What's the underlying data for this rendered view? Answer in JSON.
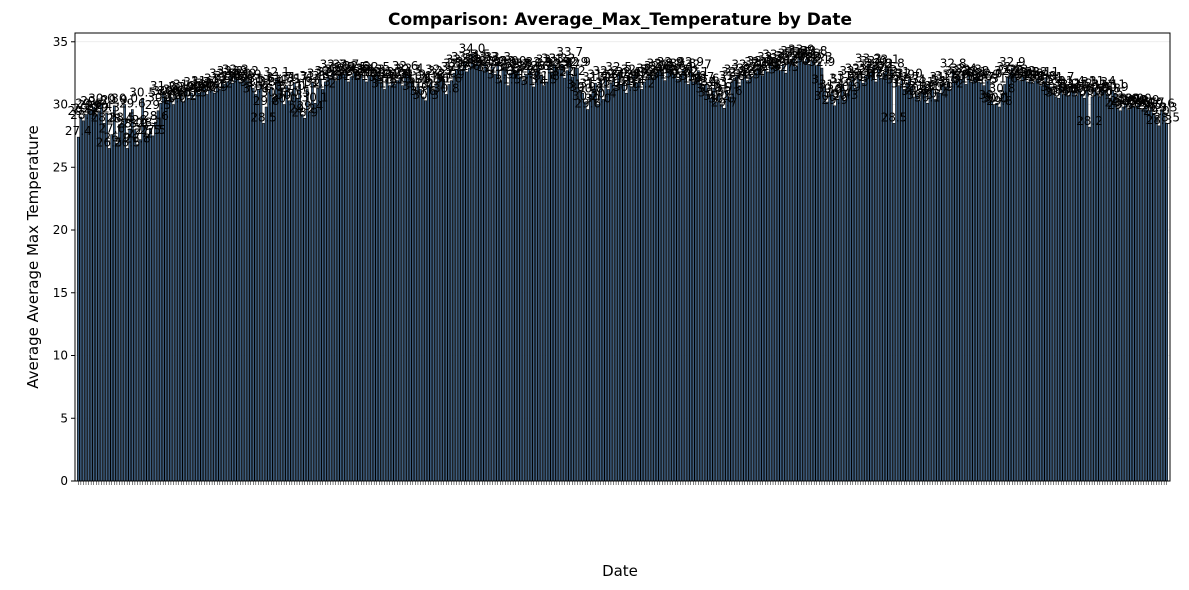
{
  "chart_data": {
    "type": "bar",
    "title": "Comparison: Average_Max_Temperature by Date",
    "xlabel": "Date",
    "ylabel": "Average Average Max Temperature",
    "ylim": [
      0,
      35.7
    ],
    "yticks": [
      0,
      5,
      10,
      15,
      20,
      25,
      30,
      35
    ],
    "grid": true,
    "bar_color": "#3f5f80",
    "bar_edge": "#000000",
    "values": [
      27.4,
      29.0,
      28.7,
      29.2,
      29.6,
      29.5,
      29.8,
      29.2,
      29.4,
      30.0,
      28.5,
      29.3,
      26.5,
      27.6,
      29.9,
      26.9,
      28.4,
      28.5,
      30.0,
      26.5,
      28.0,
      29.6,
      28.0,
      26.8,
      27.2,
      30.5,
      28.3,
      27.5,
      28.1,
      27.5,
      28.6,
      29.5,
      30.1,
      31.0,
      30.6,
      30.3,
      30.6,
      30.0,
      30.7,
      30.5,
      30.9,
      30.2,
      31.1,
      30.5,
      30.9,
      30.5,
      31.3,
      30.9,
      31.0,
      31.4,
      30.8,
      31.2,
      31.1,
      30.9,
      31.6,
      31.2,
      32.0,
      31.6,
      31.8,
      32.2,
      31.7,
      32.3,
      32.0,
      31.8,
      32.0,
      32.2,
      31.9,
      31.5,
      31.3,
      30.8,
      31.2,
      31.6,
      28.5,
      29.8,
      31.0,
      31.4,
      30.5,
      32.1,
      31.7,
      31.3,
      30.0,
      31.5,
      30.3,
      31.0,
      31.7,
      30.5,
      31.6,
      29.2,
      28.9,
      31.2,
      29.4,
      31.8,
      30.1,
      31.3,
      32.0,
      31.2,
      31.8,
      32.2,
      32.1,
      32.7,
      31.9,
      32.3,
      32.5,
      32.4,
      32.7,
      31.8,
      32.2,
      32.5,
      32.6,
      32.1,
      32.4,
      32.0,
      31.8,
      32.3,
      32.3,
      32.1,
      32.5,
      32.1,
      31.7,
      31.2,
      32.0,
      31.5,
      31.9,
      31.6,
      31.9,
      32.1,
      31.5,
      32.6,
      32.3,
      32.4,
      31.9,
      31.0,
      31.6,
      31.2,
      30.6,
      30.3,
      31.5,
      31.8,
      31.1,
      31.6,
      32.3,
      32.2,
      32.0,
      30.8,
      31.6,
      31.9,
      32.5,
      32.8,
      33.1,
      32.8,
      33.3,
      32.6,
      32.9,
      34.0,
      33.2,
      33.5,
      33.1,
      32.7,
      33.3,
      32.9,
      32.5,
      33.0,
      32.4,
      33.3,
      31.9,
      32.9,
      33.0,
      31.5,
      32.5,
      33.0,
      32.7,
      32.8,
      32.2,
      31.9,
      32.4,
      32.8,
      32.6,
      31.4,
      32.6,
      32.9,
      32.3,
      31.5,
      31.8,
      33.1,
      32.6,
      33.2,
      32.9,
      32.8,
      33.2,
      32.1,
      32.7,
      33.7,
      32.2,
      32.9,
      32.9,
      31.1,
      30.9,
      30.2,
      29.6,
      30.8,
      31.2,
      31.7,
      30.0,
      31.9,
      30.4,
      32.2,
      31.2,
      31.7,
      32.0,
      31.3,
      32.5,
      31.6,
      31.9,
      30.9,
      32.1,
      31.4,
      32.3,
      31.7,
      31.9,
      31.2,
      31.8,
      32.0,
      32.4,
      32.1,
      32.3,
      32.6,
      32.8,
      32.5,
      31.9,
      32.7,
      32.9,
      32.6,
      32.3,
      32.0,
      32.4,
      32.8,
      32.2,
      31.6,
      32.9,
      31.8,
      32.1,
      32.7,
      31.7,
      31.4,
      31.6,
      30.8,
      30.5,
      31.3,
      30.2,
      30.9,
      30.0,
      29.7,
      31.1,
      30.6,
      31.8,
      32.1,
      32.3,
      31.5,
      32.0,
      32.7,
      31.9,
      32.4,
      32.2,
      32.5,
      32.9,
      33.0,
      32.3,
      32.8,
      32.6,
      33.3,
      32.9,
      33.5,
      33.1,
      32.7,
      33.2,
      32.5,
      33.4,
      33.6,
      33.8,
      33.0,
      33.7,
      33.9,
      33.4,
      33.6,
      33.2,
      33.5,
      33.8,
      33.1,
      33.3,
      32.9,
      31.5,
      30.2,
      30.8,
      31.1,
      29.9,
      30.4,
      30.7,
      31.6,
      30.3,
      30.9,
      31.8,
      32.2,
      31.3,
      32.4,
      32.0,
      31.7,
      32.3,
      33.2,
      32.6,
      33.0,
      31.8,
      32.8,
      32.1,
      32.5,
      33.1,
      32.0,
      32.8,
      28.5,
      32.1,
      31.5,
      31.9,
      31.2,
      31.7,
      32.0,
      31.4,
      30.6,
      30.8,
      30.3,
      31.0,
      31.5,
      30.1,
      30.7,
      31.3,
      30.4,
      31.0,
      30.9,
      31.7,
      31.4,
      31.8,
      31.2,
      32.8,
      31.9,
      32.2,
      32.0,
      32.4,
      31.6,
      32.3,
      31.8,
      32.1,
      32.2,
      31.8,
      31.7,
      31.5,
      31.9,
      32.0,
      30.3,
      30.0,
      30.1,
      29.8,
      30.8,
      31.6,
      32.2,
      32.5,
      32.9,
      32.3,
      32.0,
      31.9,
      32.2,
      32.1,
      31.8,
      32.0,
      31.7,
      31.9,
      32.1,
      31.5,
      31.8,
      32.1,
      31.6,
      31.4,
      30.9,
      30.6,
      30.5,
      31.7,
      30.8,
      31.2,
      30.7,
      31.4,
      31.1,
      30.7,
      31.2,
      30.8,
      30.5,
      31.1,
      28.2,
      30.6,
      31.3,
      30.9,
      30.6,
      31.4,
      31.1,
      30.8,
      30.5,
      31.1,
      30.9,
      29.7,
      29.5,
      29.8,
      30.0,
      29.6,
      30.0,
      29.9,
      29.8,
      30.0,
      29.6,
      29.7,
      29.9,
      29.5,
      29.7,
      29.3,
      29.0,
      28.3,
      29.6,
      29.3,
      28.5
    ]
  }
}
